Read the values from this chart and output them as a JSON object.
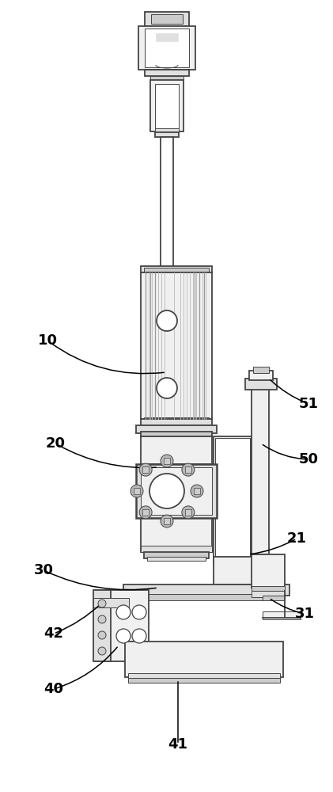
{
  "bg_color": "#ffffff",
  "lc": "#444444",
  "lw_main": 1.3,
  "lw_thin": 0.7,
  "lw_thick": 1.8,
  "fc_light": "#f0f0f0",
  "fc_mid": "#e0e0e0",
  "fc_dark": "#cccccc",
  "fc_darker": "#b8b8b8",
  "fc_white": "#ffffff",
  "label_fontsize": 13
}
